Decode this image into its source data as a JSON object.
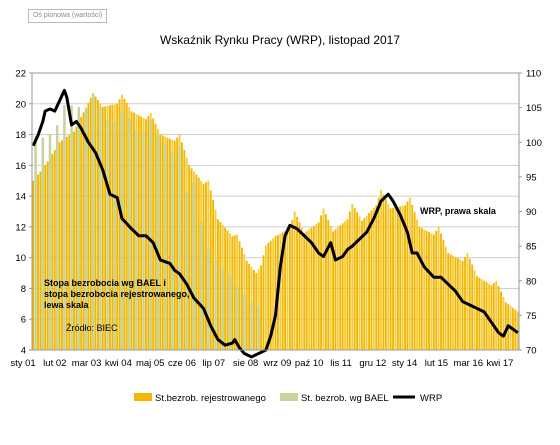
{
  "corner_tag": "Oś pionowa (wartości)",
  "chart_data": {
    "type": "bar",
    "title": "Wskaźnik Rynku Pracy (WRP), listopad 2017",
    "x_tick_labels": [
      "sty 01",
      "lut 02",
      "mar 03",
      "kwi 04",
      "maj 05",
      "cze 06",
      "lip 07",
      "sie 08",
      "wrz 09",
      "paź 10",
      "lis 11",
      "gru 12",
      "sty 14",
      "lut 15",
      "mar 16",
      "kwi 17"
    ],
    "x_range": [
      "2001-01",
      "2017-11"
    ],
    "y_left": {
      "min": 4,
      "max": 22,
      "step": 2
    },
    "y_right": {
      "min": 70,
      "max": 110,
      "step": 5
    },
    "legend_position": "bottom",
    "colors": {
      "rejestrowane": "#f2b700",
      "bael": "#c6d49c",
      "wrp": "#000000",
      "grid": "#cfcfcf"
    },
    "series": [
      {
        "name": "St.bezrob. rejestrowanego",
        "kind": "bar",
        "axis": "left",
        "anchors": [
          [
            "2001-01",
            15.0
          ],
          [
            "2001-06",
            16.0
          ],
          [
            "2001-12",
            17.5
          ],
          [
            "2002-06",
            18.2
          ],
          [
            "2003-02",
            20.7
          ],
          [
            "2003-06",
            19.8
          ],
          [
            "2003-12",
            20.0
          ],
          [
            "2004-02",
            20.6
          ],
          [
            "2004-06",
            19.5
          ],
          [
            "2004-12",
            19.0
          ],
          [
            "2005-02",
            19.4
          ],
          [
            "2005-06",
            18.0
          ],
          [
            "2005-12",
            17.6
          ],
          [
            "2006-02",
            18.0
          ],
          [
            "2006-06",
            16.0
          ],
          [
            "2006-12",
            14.8
          ],
          [
            "2007-02",
            15.0
          ],
          [
            "2007-06",
            12.5
          ],
          [
            "2007-12",
            11.4
          ],
          [
            "2008-02",
            11.5
          ],
          [
            "2008-06",
            9.8
          ],
          [
            "2008-10",
            9.0
          ],
          [
            "2008-12",
            9.5
          ],
          [
            "2009-02",
            10.8
          ],
          [
            "2009-06",
            11.4
          ],
          [
            "2009-12",
            11.9
          ],
          [
            "2010-02",
            13.0
          ],
          [
            "2010-06",
            11.6
          ],
          [
            "2010-12",
            12.3
          ],
          [
            "2011-02",
            13.2
          ],
          [
            "2011-06",
            11.7
          ],
          [
            "2011-12",
            12.5
          ],
          [
            "2012-02",
            13.5
          ],
          [
            "2012-06",
            12.4
          ],
          [
            "2012-12",
            13.4
          ],
          [
            "2013-02",
            14.4
          ],
          [
            "2013-06",
            13.2
          ],
          [
            "2013-12",
            13.4
          ],
          [
            "2014-02",
            13.9
          ],
          [
            "2014-06",
            12.0
          ],
          [
            "2014-12",
            11.5
          ],
          [
            "2015-02",
            12.0
          ],
          [
            "2015-06",
            10.3
          ],
          [
            "2015-12",
            9.8
          ],
          [
            "2016-02",
            10.3
          ],
          [
            "2016-06",
            8.8
          ],
          [
            "2016-12",
            8.2
          ],
          [
            "2017-02",
            8.5
          ],
          [
            "2017-06",
            7.1
          ],
          [
            "2017-11",
            6.5
          ]
        ]
      },
      {
        "name": "St. bezrob. wg BAEL",
        "kind": "bar",
        "axis": "left",
        "points": [
          [
            "2001-02",
            17.9
          ],
          [
            "2001-05",
            17.8
          ],
          [
            "2001-08",
            18.0
          ],
          [
            "2001-11",
            18.6
          ],
          [
            "2002-02",
            19.9
          ],
          [
            "2002-05",
            19.9
          ],
          [
            "2002-08",
            19.8
          ],
          [
            "2002-11",
            19.6
          ],
          [
            "2003-02",
            20.6
          ],
          [
            "2003-05",
            19.8
          ],
          [
            "2003-08",
            19.0
          ],
          [
            "2003-11",
            18.8
          ],
          [
            "2004-02",
            19.5
          ],
          [
            "2004-05",
            19.1
          ],
          [
            "2004-08",
            18.3
          ],
          [
            "2004-11",
            18.2
          ],
          [
            "2005-02",
            18.9
          ],
          [
            "2005-05",
            17.9
          ],
          [
            "2005-08",
            17.4
          ],
          [
            "2005-11",
            16.8
          ],
          [
            "2006-02",
            17.2
          ],
          [
            "2006-05",
            14.3
          ],
          [
            "2006-08",
            14.9
          ],
          [
            "2006-11",
            12.3
          ],
          [
            "2007-02",
            10.6
          ],
          [
            "2007-05",
            9.8
          ],
          [
            "2007-08",
            9.3
          ],
          [
            "2007-11",
            8.9
          ],
          [
            "2008-02",
            8.1
          ],
          [
            "2008-05",
            7.6
          ],
          [
            "2008-08",
            7.1
          ],
          [
            "2008-11",
            6.9
          ]
        ]
      },
      {
        "name": "WRP",
        "kind": "line",
        "axis": "right",
        "anchors": [
          [
            "2001-01",
            99.5
          ],
          [
            "2001-03",
            101.0
          ],
          [
            "2001-05",
            103.0
          ],
          [
            "2001-06",
            104.5
          ],
          [
            "2001-08",
            104.8
          ],
          [
            "2001-10",
            104.5
          ],
          [
            "2001-12",
            106.0
          ],
          [
            "2002-02",
            107.5
          ],
          [
            "2002-03",
            106.5
          ],
          [
            "2002-05",
            102.5
          ],
          [
            "2002-07",
            103.0
          ],
          [
            "2002-09",
            102.0
          ],
          [
            "2002-12",
            100.0
          ],
          [
            "2003-03",
            98.5
          ],
          [
            "2003-06",
            96.0
          ],
          [
            "2003-09",
            92.5
          ],
          [
            "2003-12",
            92.0
          ],
          [
            "2004-02",
            89.0
          ],
          [
            "2004-06",
            87.5
          ],
          [
            "2004-09",
            86.5
          ],
          [
            "2004-12",
            86.5
          ],
          [
            "2005-03",
            85.5
          ],
          [
            "2005-06",
            83.0
          ],
          [
            "2005-10",
            82.5
          ],
          [
            "2005-12",
            81.5
          ],
          [
            "2006-02",
            81.0
          ],
          [
            "2006-05",
            79.5
          ],
          [
            "2006-08",
            77.5
          ],
          [
            "2006-12",
            76.0
          ],
          [
            "2007-03",
            73.5
          ],
          [
            "2007-06",
            71.5
          ],
          [
            "2007-09",
            70.7
          ],
          [
            "2007-12",
            71.0
          ],
          [
            "2008-01",
            71.5
          ],
          [
            "2008-03",
            70.3
          ],
          [
            "2008-05",
            69.5
          ],
          [
            "2008-08",
            69.0
          ],
          [
            "2008-11",
            69.5
          ],
          [
            "2009-02",
            70.0
          ],
          [
            "2009-04",
            72.0
          ],
          [
            "2009-06",
            75.0
          ],
          [
            "2009-08",
            82.0
          ],
          [
            "2009-10",
            86.5
          ],
          [
            "2009-12",
            88.0
          ],
          [
            "2010-03",
            87.5
          ],
          [
            "2010-06",
            86.5
          ],
          [
            "2010-09",
            85.5
          ],
          [
            "2010-12",
            84.0
          ],
          [
            "2011-02",
            83.5
          ],
          [
            "2011-05",
            85.5
          ],
          [
            "2011-07",
            83.0
          ],
          [
            "2011-10",
            83.5
          ],
          [
            "2011-12",
            84.5
          ],
          [
            "2012-02",
            85.0
          ],
          [
            "2012-05",
            86.0
          ],
          [
            "2012-08",
            87.0
          ],
          [
            "2012-11",
            89.0
          ],
          [
            "2013-02",
            91.5
          ],
          [
            "2013-05",
            92.5
          ],
          [
            "2013-07",
            91.5
          ],
          [
            "2013-10",
            89.5
          ],
          [
            "2014-01",
            87.0
          ],
          [
            "2014-03",
            84.0
          ],
          [
            "2014-05",
            84.0
          ],
          [
            "2014-08",
            82.0
          ],
          [
            "2014-12",
            80.5
          ],
          [
            "2015-03",
            80.5
          ],
          [
            "2015-06",
            79.5
          ],
          [
            "2015-09",
            78.5
          ],
          [
            "2015-12",
            77.0
          ],
          [
            "2016-03",
            76.5
          ],
          [
            "2016-06",
            76.0
          ],
          [
            "2016-09",
            75.5
          ],
          [
            "2016-12",
            74.0
          ],
          [
            "2017-03",
            72.5
          ],
          [
            "2017-05",
            72.0
          ],
          [
            "2017-07",
            73.5
          ],
          [
            "2017-09",
            73.0
          ],
          [
            "2017-11",
            72.5
          ]
        ]
      }
    ],
    "annotations": [
      {
        "id": "wrp-note",
        "text": "WRP, prawa skala"
      },
      {
        "id": "bael-note",
        "lines": [
          "Stopa bezrobocia wg BAEL i",
          "stopa bezrobocia rejestrowanego,",
          "lewa skala"
        ]
      },
      {
        "id": "source-note",
        "text": "Źródło: BIEC"
      }
    ],
    "legend": [
      {
        "label": "St.bezrob. rejestrowanego",
        "swatch": "bar"
      },
      {
        "label": "St. bezrob. wg BAEL",
        "swatch": "bar"
      },
      {
        "label": "WRP",
        "swatch": "line"
      }
    ]
  }
}
